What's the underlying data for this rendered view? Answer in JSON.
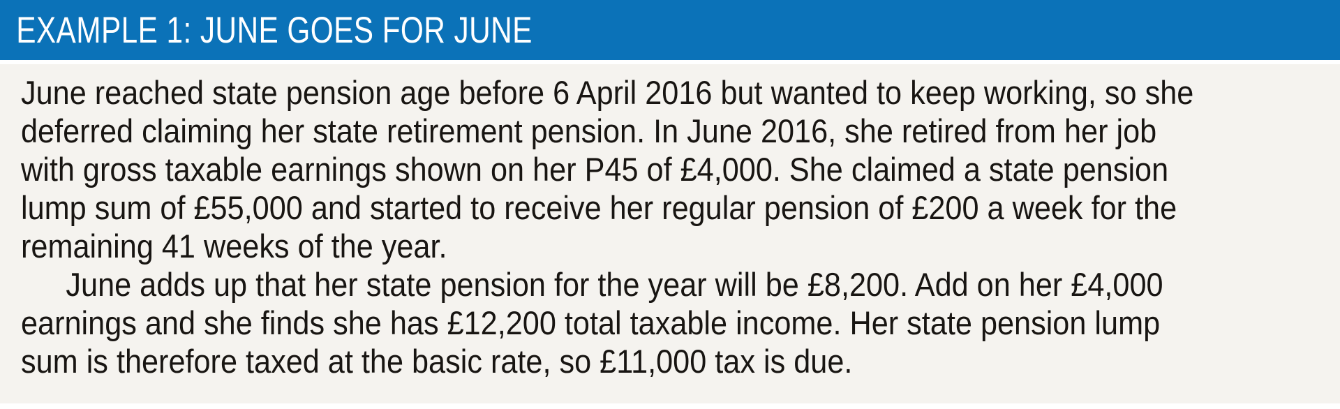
{
  "example_box": {
    "header": {
      "title": "EXAMPLE 1: JUNE GOES FOR JUNE",
      "background_color": "#0b72b8",
      "text_color": "#ffffff"
    },
    "body": {
      "background_color": "#f5f3ef",
      "text_color": "#181512",
      "paragraphs": [
        {
          "first_line_indented": false,
          "lines": [
            "June reached state pension age before 6 April 2016 but wanted to keep working, so she",
            "deferred claiming her state retirement pension. In June 2016, she retired from her job",
            "with gross taxable earnings shown on her P45 of £4,000. She claimed a state pension",
            "lump sum of £55,000 and started to receive her regular pension of £200 a week for the",
            "remaining 41 weeks of the year."
          ]
        },
        {
          "first_line_indented": true,
          "lines": [
            "June adds up that her state pension for the year will be £8,200. Add on her £4,000",
            "earnings and she finds she has £12,200 total taxable income. Her state pension lump",
            "sum is therefore taxed at the basic rate, so £11,000 tax is due."
          ]
        }
      ]
    }
  }
}
